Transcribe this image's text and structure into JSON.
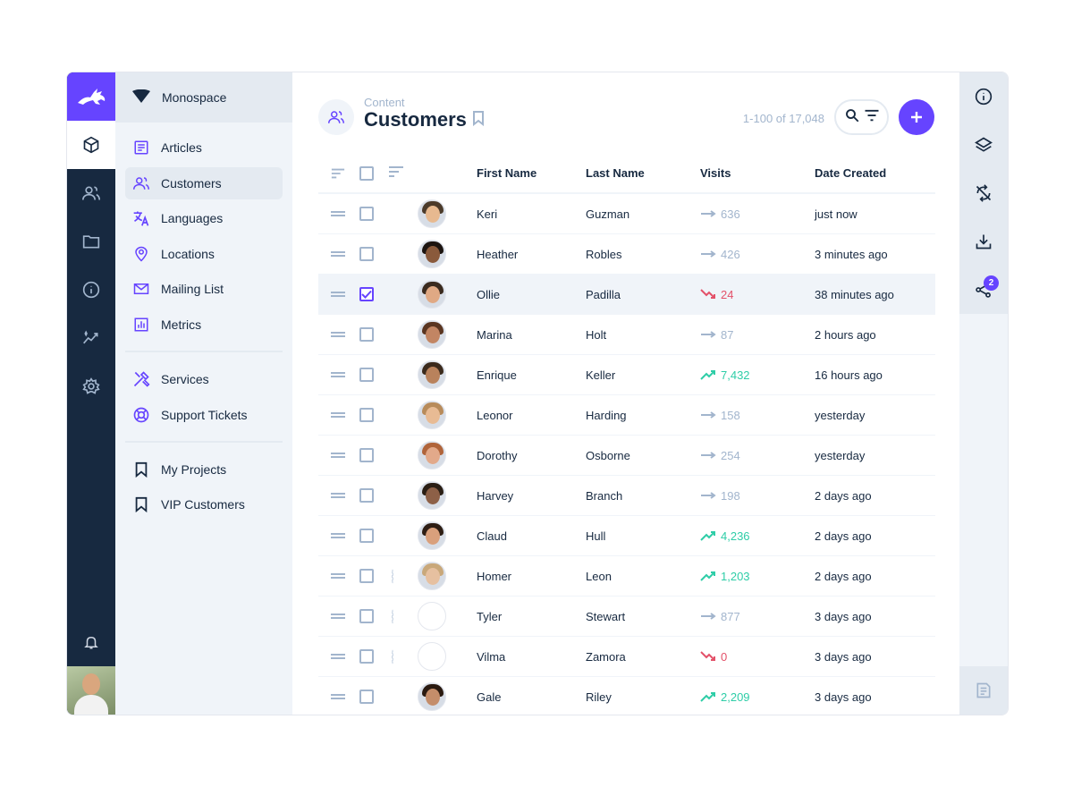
{
  "project": {
    "name": "Monospace"
  },
  "nav": {
    "items": [
      {
        "label": "Articles",
        "icon": "article-icon",
        "active": false
      },
      {
        "label": "Customers",
        "icon": "people-icon",
        "active": true
      },
      {
        "label": "Languages",
        "icon": "translate-icon",
        "active": false
      },
      {
        "label": "Locations",
        "icon": "location-pin-icon",
        "active": false
      },
      {
        "label": "Mailing List",
        "icon": "mail-icon",
        "active": false
      },
      {
        "label": "Metrics",
        "icon": "chart-icon",
        "active": false
      }
    ],
    "group2": [
      {
        "label": "Services",
        "icon": "tools-icon"
      },
      {
        "label": "Support Tickets",
        "icon": "lifebuoy-icon"
      }
    ],
    "bookmarks": [
      {
        "label": "My Projects",
        "icon": "bookmark-icon"
      },
      {
        "label": "VIP Customers",
        "icon": "bookmark-icon"
      }
    ]
  },
  "header": {
    "breadcrumb": "Content",
    "title": "Customers",
    "count": "1-100 of 17,048"
  },
  "table": {
    "columns": [
      "First Name",
      "Last Name",
      "Visits",
      "Date Created"
    ],
    "rows": [
      {
        "first": "Keri",
        "last": "Guzman",
        "visits": "636",
        "trend": "flat",
        "date": "just now",
        "status": "#6644ff",
        "checked": false
      },
      {
        "first": "Heather",
        "last": "Robles",
        "visits": "426",
        "trend": "flat",
        "date": "3 minutes ago",
        "status": "#6644ff",
        "checked": false
      },
      {
        "first": "Ollie",
        "last": "Padilla",
        "visits": "24",
        "trend": "down",
        "date": "38 minutes ago",
        "status": "#f29bdc",
        "checked": true
      },
      {
        "first": "Marina",
        "last": "Holt",
        "visits": "87",
        "trend": "flat",
        "date": "2 hours ago",
        "status": "#f29bdc",
        "checked": false
      },
      {
        "first": "Enrique",
        "last": "Keller",
        "visits": "7,432",
        "trend": "up",
        "date": "16 hours ago",
        "status": "#6644ff",
        "checked": false
      },
      {
        "first": "Leonor",
        "last": "Harding",
        "visits": "158",
        "trend": "flat",
        "date": "yesterday",
        "status": "#6644ff",
        "checked": false
      },
      {
        "first": "Dorothy",
        "last": "Osborne",
        "visits": "254",
        "trend": "flat",
        "date": "yesterday",
        "status": "#6644ff",
        "checked": false
      },
      {
        "first": "Harvey",
        "last": "Branch",
        "visits": "198",
        "trend": "flat",
        "date": "2 days ago",
        "status": "#6644ff",
        "checked": false
      },
      {
        "first": "Claud",
        "last": "Hull",
        "visits": "4,236",
        "trend": "up",
        "date": "2 days ago",
        "status": "#f29bdc",
        "checked": false
      },
      {
        "first": "Homer",
        "last": "Leon",
        "visits": "1,203",
        "trend": "up",
        "date": "2 days ago",
        "status": "empty",
        "checked": false
      },
      {
        "first": "Tyler",
        "last": "Stewart",
        "visits": "877",
        "trend": "flat",
        "date": "3 days ago",
        "status": "empty",
        "checked": false
      },
      {
        "first": "Vilma",
        "last": "Zamora",
        "visits": "0",
        "trend": "down",
        "date": "3 days ago",
        "status": "empty",
        "checked": false
      },
      {
        "first": "Gale",
        "last": "Riley",
        "visits": "2,209",
        "trend": "up",
        "date": "3 days ago",
        "status": "#6644ff",
        "checked": false
      }
    ]
  },
  "sidebar": {
    "items": [
      "info-icon",
      "layers-icon",
      "sync-off-icon",
      "download-icon",
      "share-icon"
    ],
    "share_badge": "2"
  },
  "colors": {
    "accent": "#6644ff",
    "rail": "#172940",
    "up": "#2ecda7",
    "down": "#e35169",
    "muted": "#a2b5cd"
  }
}
